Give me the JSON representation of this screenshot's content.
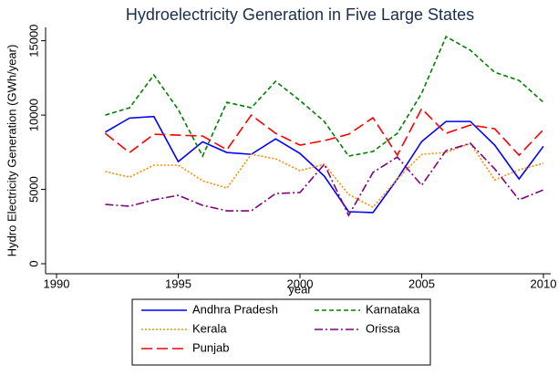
{
  "chart_data": {
    "type": "line",
    "title": "Hydroelectricity Generation in Five Large States",
    "xlabel": "year",
    "ylabel": "Hydro Electricity Generation (GWh/year)",
    "x": [
      1992,
      1993,
      1994,
      1995,
      1996,
      1997,
      1998,
      1999,
      2000,
      2001,
      2002,
      2003,
      2004,
      2005,
      2006,
      2007,
      2008,
      2009,
      2010
    ],
    "series": [
      {
        "name": "Andhra Pradesh",
        "color": "#0000ff",
        "dash": "none",
        "values": [
          8850,
          9800,
          9900,
          6870,
          8200,
          7480,
          7360,
          8400,
          7420,
          5890,
          3500,
          3440,
          5700,
          8220,
          9570,
          9570,
          7980,
          5700,
          7900
        ]
      },
      {
        "name": "Karnataka",
        "color": "#008000",
        "dash": "5,3",
        "values": [
          10000,
          10490,
          12700,
          10370,
          7240,
          10860,
          10490,
          12270,
          10980,
          9570,
          7240,
          7550,
          8770,
          11470,
          15280,
          14360,
          12880,
          12330,
          10860
        ]
      },
      {
        "name": "Kerala",
        "color": "#ff8c00",
        "dash": "2,2",
        "values": [
          6200,
          5830,
          6630,
          6630,
          5580,
          5090,
          7360,
          7060,
          6260,
          6690,
          4660,
          3800,
          5700,
          7360,
          7480,
          8100,
          5640,
          6320,
          6750
        ]
      },
      {
        "name": "Orissa",
        "color": "#800080",
        "dash": "9,3,2,3",
        "values": [
          3990,
          3870,
          4300,
          4600,
          3930,
          3560,
          3560,
          4720,
          4790,
          6690,
          3250,
          6140,
          7180,
          5280,
          7610,
          8100,
          6380,
          4300,
          4970
        ]
      },
      {
        "name": "Punjab",
        "color": "#ff0000",
        "dash": "12,5",
        "values": [
          8770,
          7480,
          8710,
          8650,
          8590,
          7670,
          10000,
          8770,
          7980,
          8280,
          8710,
          9820,
          7300,
          10430,
          8770,
          9330,
          9080,
          7300,
          9020
        ]
      }
    ],
    "xlim": [
      1989.55,
      2010.3
    ],
    "xticks": [
      1990,
      1995,
      2000,
      2005,
      2010
    ],
    "ylim": [
      -675,
      15900
    ],
    "yticks": [
      0,
      5000,
      10000,
      15000
    ],
    "grid": false,
    "legend": "bottom"
  }
}
